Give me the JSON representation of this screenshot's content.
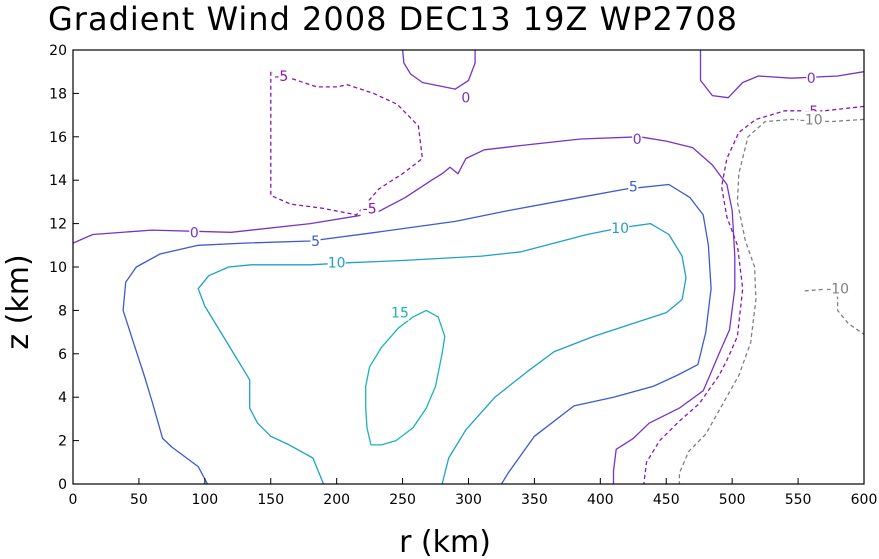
{
  "chart_data": {
    "type": "contour",
    "title": "Gradient Wind 2008 DEC13 19Z  WP2708",
    "xlabel": "r (km)",
    "ylabel": "z (km)",
    "xlim": [
      0,
      600
    ],
    "ylim": [
      0,
      20
    ],
    "xticks": [
      0,
      50,
      100,
      150,
      200,
      250,
      300,
      350,
      400,
      450,
      500,
      550,
      600
    ],
    "yticks": [
      0,
      2,
      4,
      6,
      8,
      10,
      12,
      14,
      16,
      18,
      20
    ],
    "levels": [
      {
        "value": 15,
        "color": "#19b4b4",
        "dashed": false,
        "paths": [
          [
            [
              226,
              1.8
            ],
            [
              234,
              1.8
            ],
            [
              245,
              2
            ],
            [
              258,
              2.6
            ],
            [
              268,
              3.5
            ],
            [
              275,
              4.5
            ],
            [
              280,
              6
            ],
            [
              282,
              6.8
            ],
            [
              277,
              7.7
            ],
            [
              268,
              8
            ],
            [
              258,
              7.7
            ],
            [
              247,
              7.2
            ],
            [
              234,
              6.3
            ],
            [
              225,
              5.4
            ],
            [
              222,
              4.5
            ],
            [
              222,
              3.5
            ],
            [
              223,
              2.6
            ],
            [
              226,
              1.8
            ]
          ]
        ],
        "labels": [
          {
            "text": "15",
            "x": 248,
            "y": 7.9
          }
        ]
      },
      {
        "value": 10,
        "color": "#1fa0c8",
        "dashed": false,
        "paths": [
          [
            [
              190,
              0
            ],
            [
              182,
              1.2
            ],
            [
              164,
              1.8
            ],
            [
              150,
              2.2
            ],
            [
              140,
              2.8
            ],
            [
              134,
              3.5
            ],
            [
              134,
              4.8
            ],
            [
              124,
              5.8
            ],
            [
              112,
              7
            ],
            [
              100,
              8.2
            ],
            [
              95,
              9
            ],
            [
              103,
              9.6
            ],
            [
              118,
              10
            ],
            [
              135,
              10.1
            ],
            [
              180,
              10.1
            ],
            [
              210,
              10.2
            ],
            [
              250,
              10.3
            ],
            [
              310,
              10.5
            ],
            [
              340,
              10.7
            ],
            [
              390,
              11.5
            ],
            [
              415,
              11.8
            ],
            [
              438,
              12
            ],
            [
              452,
              11.5
            ],
            [
              462,
              10.5
            ],
            [
              465,
              9.5
            ],
            [
              462,
              8.5
            ],
            [
              450,
              7.9
            ],
            [
              425,
              7.4
            ],
            [
              395,
              6.8
            ],
            [
              365,
              6.1
            ],
            [
              345,
              5.2
            ],
            [
              320,
              4
            ],
            [
              298,
              2.5
            ],
            [
              285,
              1.2
            ],
            [
              280,
              0
            ]
          ]
        ],
        "labels": [
          {
            "text": "10",
            "x": 200,
            "y": 10.2
          },
          {
            "text": "10",
            "x": 415,
            "y": 11.8
          }
        ]
      },
      {
        "value": 5,
        "color": "#3c5ad2",
        "dashed": false,
        "paths": [
          [
            [
              102,
              0
            ],
            [
              95,
              0.8
            ],
            [
              75,
              1.7
            ],
            [
              68,
              2.1
            ],
            [
              60,
              3.8
            ],
            [
              54,
              5
            ],
            [
              46,
              6.5
            ],
            [
              38,
              8
            ],
            [
              40,
              9.3
            ],
            [
              48,
              10
            ],
            [
              66,
              10.6
            ],
            [
              95,
              11
            ],
            [
              130,
              11.1
            ],
            [
              180,
              11.2
            ],
            [
              230,
              11.6
            ],
            [
              290,
              12.1
            ],
            [
              330,
              12.6
            ],
            [
              375,
              13.1
            ],
            [
              420,
              13.6
            ],
            [
              452,
              13.8
            ],
            [
              468,
              13.2
            ],
            [
              478,
              12.4
            ],
            [
              482,
              11
            ],
            [
              484,
              9
            ],
            [
              480,
              7
            ],
            [
              474,
              5.5
            ],
            [
              458,
              5
            ],
            [
              440,
              4.5
            ],
            [
              410,
              4
            ],
            [
              380,
              3.6
            ],
            [
              350,
              2.2
            ],
            [
              330,
              0.5
            ],
            [
              325,
              0
            ]
          ]
        ],
        "labels": [
          {
            "text": "5",
            "x": 184,
            "y": 11.2
          },
          {
            "text": "5",
            "x": 425,
            "y": 13.7
          }
        ]
      },
      {
        "value": 0,
        "color": "#7832c8",
        "dashed": false,
        "paths": [
          [
            [
              0,
              11.1
            ],
            [
              15,
              11.5
            ],
            [
              60,
              11.7
            ],
            [
              120,
              11.6
            ],
            [
              180,
              12
            ],
            [
              230,
              12.5
            ],
            [
              252,
              13.2
            ],
            [
              272,
              14
            ],
            [
              280,
              14.3
            ],
            [
              286,
              14.6
            ],
            [
              292,
              14.3
            ],
            [
              298,
              15
            ],
            [
              312,
              15.4
            ],
            [
              340,
              15.6
            ],
            [
              385,
              15.9
            ],
            [
              430,
              16
            ],
            [
              450,
              15.8
            ],
            [
              470,
              15.5
            ],
            [
              485,
              14.7
            ],
            [
              496,
              13.8
            ],
            [
              500,
              12.6
            ],
            [
              502,
              10.5
            ],
            [
              502,
              9
            ],
            [
              498,
              7.1
            ],
            [
              490,
              6
            ],
            [
              483,
              5
            ],
            [
              478,
              4.3
            ],
            [
              460,
              3.5
            ],
            [
              437,
              2.8
            ],
            [
              425,
              2.1
            ],
            [
              412,
              1.6
            ],
            [
              410,
              0.6
            ],
            [
              410,
              0
            ]
          ],
          [
            [
              250,
              20
            ],
            [
              251,
              19.4
            ],
            [
              256,
              18.9
            ],
            [
              265,
              18.5
            ],
            [
              290,
              18.2
            ],
            [
              300,
              18.6
            ],
            [
              305,
              19.4
            ],
            [
              305,
              20
            ]
          ],
          [
            [
              476,
              20
            ],
            [
              476,
              18.6
            ],
            [
              485,
              17.9
            ],
            [
              497,
              17.8
            ],
            [
              508,
              18.5
            ],
            [
              520,
              18.8
            ],
            [
              545,
              18.7
            ],
            [
              580,
              18.8
            ],
            [
              600,
              19
            ]
          ]
        ],
        "labels": [
          {
            "text": "0",
            "x": 92,
            "y": 11.6
          },
          {
            "text": "0",
            "x": 298,
            "y": 17.8
          },
          {
            "text": "0",
            "x": 428,
            "y": 15.9
          },
          {
            "text": "0",
            "x": 560,
            "y": 18.7
          }
        ]
      },
      {
        "value": -5,
        "color": "#8c14b4",
        "dashed": true,
        "paths": [
          [
            [
              150,
              19
            ],
            [
              150,
              18.4
            ],
            [
              150,
              13.3
            ],
            [
              165,
              12.9
            ],
            [
              190,
              12.7
            ],
            [
              215,
              12.4
            ],
            [
              232,
              13.6
            ],
            [
              250,
              14.3
            ],
            [
              265,
              15
            ],
            [
              262,
              16.5
            ],
            [
              246,
              17.5
            ],
            [
              228,
              18
            ],
            [
              208,
              18.4
            ],
            [
              200,
              18.3
            ],
            [
              185,
              18.3
            ],
            [
              150,
              19
            ]
          ],
          [
            [
              600,
              17.4
            ],
            [
              570,
              17.2
            ],
            [
              540,
              17.2
            ],
            [
              518,
              16.8
            ],
            [
              505,
              16.2
            ],
            [
              496,
              15
            ],
            [
              492,
              13.7
            ],
            [
              496,
              12.3
            ],
            [
              504,
              11
            ],
            [
              508,
              9
            ],
            [
              504,
              6.8
            ],
            [
              496,
              5.7
            ],
            [
              490,
              5
            ],
            [
              475,
              3.7
            ],
            [
              460,
              2.9
            ],
            [
              445,
              2
            ],
            [
              435,
              1
            ],
            [
              433,
              0
            ]
          ]
        ],
        "labels": [
          {
            "text": "-5",
            "x": 158,
            "y": 18.8
          },
          {
            "text": "-5",
            "x": 225,
            "y": 12.7
          },
          {
            "text": "-5",
            "x": 560,
            "y": 17.2
          }
        ]
      },
      {
        "value": -10,
        "color": "#808080",
        "dashed": true,
        "paths": [
          [
            [
              600,
              16.8
            ],
            [
              575,
              16.7
            ],
            [
              545,
              16.8
            ],
            [
              525,
              16.7
            ],
            [
              512,
              16
            ],
            [
              505,
              14.3
            ],
            [
              504,
              13
            ],
            [
              510,
              11.2
            ],
            [
              517,
              10
            ],
            [
              518,
              8.5
            ],
            [
              514,
              6.5
            ],
            [
              505,
              5
            ],
            [
              493,
              3.7
            ],
            [
              480,
              2.3
            ],
            [
              467,
              1.5
            ],
            [
              460,
              0.5
            ],
            [
              460,
              0
            ]
          ],
          [
            [
              555,
              8.9
            ],
            [
              575,
              9
            ],
            [
              580,
              8.6
            ],
            [
              580,
              8
            ],
            [
              588,
              7.4
            ],
            [
              600,
              6.9
            ]
          ]
        ],
        "labels": [
          {
            "text": "-10",
            "x": 560,
            "y": 16.8
          },
          {
            "text": "-10",
            "x": 580,
            "y": 9
          }
        ]
      }
    ]
  }
}
